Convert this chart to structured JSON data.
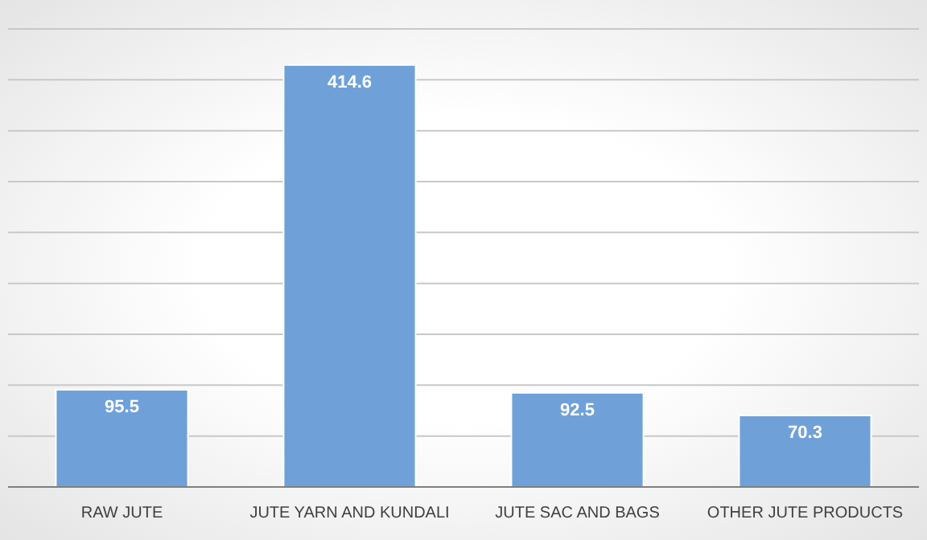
{
  "chart_data": {
    "type": "bar",
    "categories": [
      "RAW JUTE",
      "JUTE YARN AND KUNDALI",
      "JUTE SAC AND BAGS",
      "OTHER JUTE PRODUCTS"
    ],
    "values": [
      95.5,
      414.6,
      92.5,
      70.3
    ],
    "color": "#6fa1d8",
    "data_labels": true,
    "ylim": [
      0,
      450
    ],
    "yticks": [
      {
        "value": 0,
        "label": null
      },
      {
        "value": 50,
        "label": null
      },
      {
        "value": 100,
        "label": null
      },
      {
        "value": 150,
        "label": null
      },
      {
        "value": 200,
        "label": null
      },
      {
        "value": 250,
        "label": null
      },
      {
        "value": 300,
        "label": null
      },
      {
        "value": 350,
        "label": null
      },
      {
        "value": 400,
        "label": null
      },
      {
        "value": 450,
        "label": null
      }
    ],
    "grid": "y",
    "tick_labels": "x"
  }
}
